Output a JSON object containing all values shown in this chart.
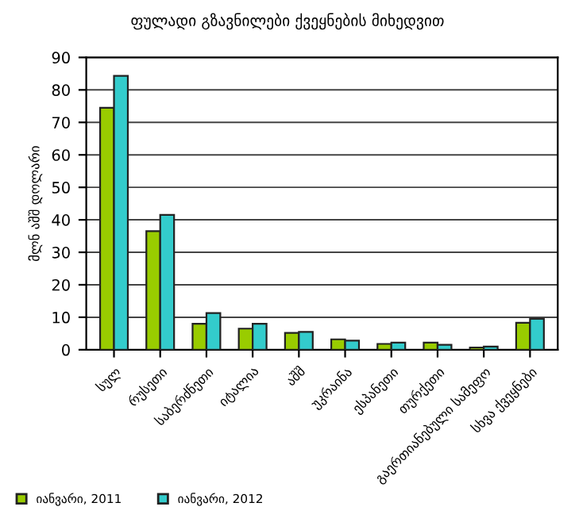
{
  "chart_data": {
    "type": "bar",
    "title": "ფულადი გზავნილები ქვეყნების მიხედვით",
    "ylabel": "მლნ აშშ დოლარი",
    "categories": [
      "სულ",
      "რუსეთი",
      "საბერძნეთი",
      "იტალია",
      "აშშ",
      "უკრაინა",
      "ესპანეთი",
      "თურქეთი",
      "გაერთიანებული სამეფო",
      "სხვა ქვეყნები"
    ],
    "series": [
      {
        "name": "იანვარი, 2011",
        "color": "#99cc00",
        "values": [
          74.5,
          36.5,
          8,
          6.5,
          5.2,
          3.2,
          1.8,
          2.2,
          0.7,
          8.3
        ]
      },
      {
        "name": "იანვარი, 2012",
        "color": "#33cccc",
        "values": [
          84.3,
          41.5,
          11.3,
          8,
          5.5,
          2.8,
          2.2,
          1.5,
          1.0,
          9.5
        ]
      }
    ],
    "ylim": [
      0,
      90
    ],
    "yticks": [
      0,
      10,
      20,
      30,
      40,
      50,
      60,
      70,
      80,
      90
    ],
    "grid": "y",
    "legend": "bottom left"
  }
}
